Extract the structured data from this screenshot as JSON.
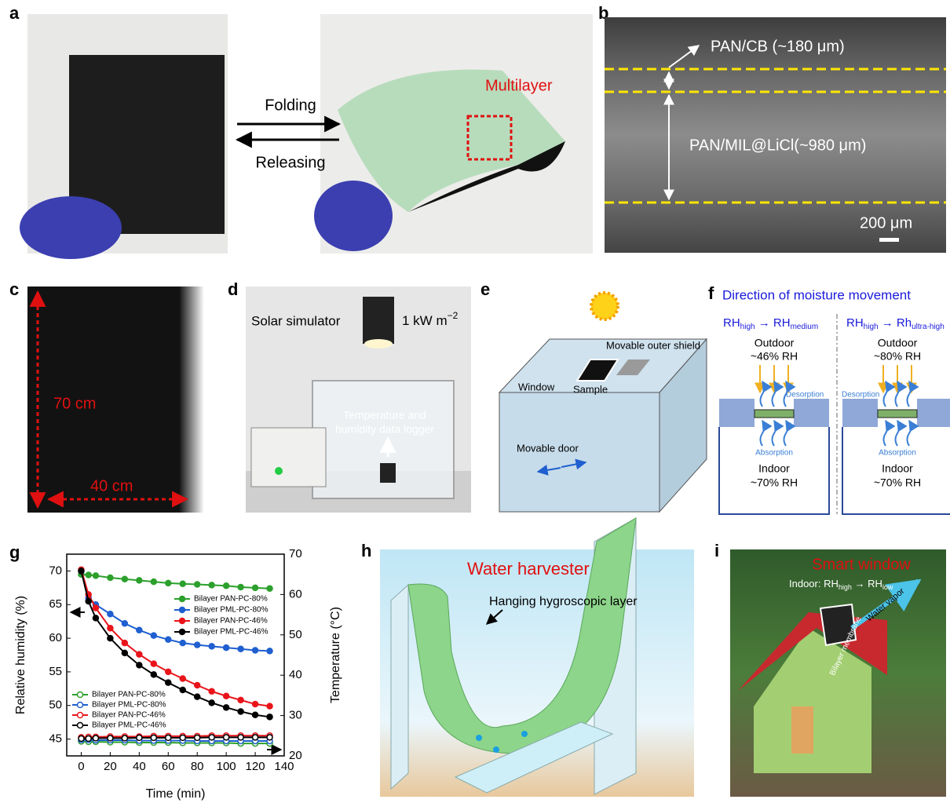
{
  "panels": {
    "a": {
      "label": "a",
      "folding": "Folding",
      "releasing": "Releasing",
      "multilayer": "Multilayer"
    },
    "b": {
      "label": "b",
      "layer1": "PAN/CB (~180 μm)",
      "layer2": "PAN/MIL@LiCl(~980 μm)",
      "scale": "200 μm"
    },
    "c": {
      "label": "c",
      "height": "70 cm",
      "width": "40 cm"
    },
    "d": {
      "label": "d",
      "simulator": "Solar simulator",
      "intensity": "1 kW m",
      "intensity_exp": "−2",
      "logger_line1": "Temperature and",
      "logger_line2": "humidity data logger"
    },
    "e": {
      "label": "e",
      "shield": "Movable outer shield",
      "window": "Window",
      "sample": "Sample",
      "door": "Movable door"
    },
    "f": {
      "label": "f",
      "title": "Direction of moisture movement",
      "left": {
        "from": "RH",
        "from_sub": "high",
        "to": "RH",
        "to_sub": "medium",
        "outdoor": "Outdoor",
        "outdoor_rh": "~46% RH",
        "desorption": "Desorption",
        "absorption": "Absorption",
        "indoor": "Indoor",
        "indoor_rh": "~70% RH"
      },
      "right": {
        "from": "RH",
        "from_sub": "high",
        "to": "Rh",
        "to_sub": "ultra-high",
        "outdoor": "Outdoor",
        "outdoor_rh": "~80% RH",
        "desorption": "Desorption",
        "absorption": "Absorption",
        "indoor": "Indoor",
        "indoor_rh": "~70% RH"
      }
    },
    "g": {
      "label": "g"
    },
    "h": {
      "label": "h",
      "title": "Water harvester",
      "layer": "Hanging hygroscopic layer"
    },
    "i": {
      "label": "i",
      "title": "Smart window",
      "indoor": "Indoor: RH",
      "high": "high",
      "rh": "RH",
      "low": "low",
      "vapor": "Water vapor",
      "membrane": "Bilayer membrane"
    }
  },
  "chart_data": {
    "type": "line",
    "xlabel": "Time (min)",
    "ylabel": "Relative humidity (%)",
    "y2label": "Temperature (°C)",
    "x": [
      0,
      5,
      10,
      20,
      30,
      40,
      50,
      60,
      70,
      80,
      90,
      100,
      110,
      120,
      130
    ],
    "xlim": [
      -10,
      140
    ],
    "xticks": [
      0,
      20,
      40,
      60,
      80,
      100,
      120,
      140
    ],
    "ylim": [
      42.5,
      72.5
    ],
    "yticks": [
      45,
      50,
      55,
      60,
      65,
      70
    ],
    "y2lim": [
      20,
      70
    ],
    "y2ticks": [
      20,
      30,
      40,
      50,
      60,
      70
    ],
    "series": [
      {
        "name": "Bilayer PAN-PC-80%",
        "color": "#2ca02c",
        "marker": "filled",
        "values": [
          69.5,
          69.4,
          69.3,
          69.0,
          68.8,
          68.6,
          68.4,
          68.2,
          68.1,
          68.0,
          67.9,
          67.8,
          67.6,
          67.5,
          67.4
        ]
      },
      {
        "name": "Bilayer PML-PC-80%",
        "color": "#1f5fd0",
        "marker": "filled",
        "values": [
          70,
          66,
          65,
          63.6,
          62.2,
          61.2,
          60.4,
          59.8,
          59.3,
          59.0,
          58.8,
          58.6,
          58.4,
          58.2,
          58.1
        ]
      },
      {
        "name": "Bilayer PAN-PC-46%",
        "color": "#e8141a",
        "marker": "filled",
        "values": [
          70.2,
          66.5,
          64.5,
          61.5,
          59.3,
          57.6,
          56.2,
          55.0,
          54.0,
          53.0,
          52.1,
          51.4,
          50.8,
          50.2,
          49.9
        ]
      },
      {
        "name": "Bilayer PML-PC-46%",
        "color": "#000000",
        "marker": "filled",
        "values": [
          70,
          65.5,
          63,
          60,
          57.8,
          56,
          54.6,
          53.4,
          52.3,
          51.3,
          50.4,
          49.7,
          49.1,
          48.6,
          48.3
        ]
      },
      {
        "name": "Bilayer PAN-PC-80%",
        "color": "#2ca02c",
        "marker": "open",
        "axis": "y2",
        "values": [
          23.6,
          23.5,
          23.5,
          23.4,
          23.4,
          23.3,
          23.3,
          23.3,
          23.2,
          23.2,
          23.2,
          23.2,
          23.1,
          23.1,
          23.1
        ]
      },
      {
        "name": "Bilayer PML-PC-80%",
        "color": "#1f5fd0",
        "marker": "open",
        "axis": "y2",
        "values": [
          24.0,
          24.0,
          23.9,
          23.9,
          23.9,
          23.8,
          23.8,
          23.8,
          23.8,
          23.7,
          23.7,
          23.7,
          23.7,
          23.7,
          23.7
        ]
      },
      {
        "name": "Bilayer PAN-PC-46%",
        "color": "#e8141a",
        "marker": "open",
        "axis": "y2",
        "values": [
          24.6,
          24.7,
          24.7,
          24.8,
          24.8,
          24.8,
          24.9,
          24.9,
          24.9,
          24.9,
          25.0,
          25.0,
          25.0,
          25.0,
          25.0
        ]
      },
      {
        "name": "Bilayer PML-PC-46%",
        "color": "#000000",
        "marker": "open",
        "axis": "y2",
        "values": [
          24.3,
          24.3,
          24.4,
          24.4,
          24.4,
          24.5,
          24.5,
          24.5,
          24.5,
          24.5,
          24.6,
          24.6,
          24.6,
          24.6,
          24.6
        ]
      }
    ]
  }
}
